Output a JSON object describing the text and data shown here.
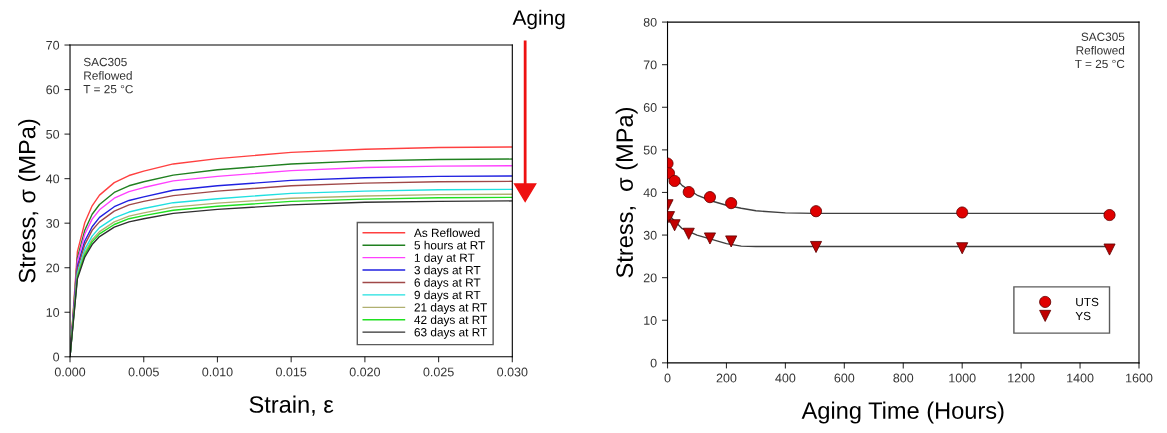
{
  "chart_data": [
    {
      "type": "line",
      "xlabel": "Strain, ε",
      "ylabel": "Stress, σ (MPa)",
      "xlim": [
        0,
        0.03
      ],
      "ylim": [
        0,
        70
      ],
      "xticks": [
        {
          "value": 0,
          "label": "0.000"
        },
        {
          "value": 0.005,
          "label": "0.005"
        },
        {
          "value": 0.01,
          "label": "0.010"
        },
        {
          "value": 0.015,
          "label": "0.015"
        },
        {
          "value": 0.02,
          "label": "0.020"
        },
        {
          "value": 0.025,
          "label": "0.025"
        },
        {
          "value": 0.03,
          "label": "0.030"
        }
      ],
      "yticks": [
        0,
        10,
        20,
        30,
        40,
        50,
        60,
        70
      ],
      "legend": "bottom right",
      "x": [
        0,
        0.0005,
        0.001,
        0.0015,
        0.002,
        0.003,
        0.004,
        0.005,
        0.007,
        0.01,
        0.015,
        0.02,
        0.025,
        0.03
      ],
      "annotations": [
        "SAC305\nReflowed\nT = 25 °C",
        "Aging"
      ],
      "series": [
        {
          "name": "As Reflowed",
          "color": "#ff4040",
          "values": [
            0,
            23.6,
            30.1,
            33.9,
            36.3,
            39.1,
            40.7,
            41.7,
            43.3,
            44.5,
            45.9,
            46.6,
            47.0,
            47.1
          ]
        },
        {
          "name": "5 hours at RT",
          "color": "#208020",
          "values": [
            0,
            22.2,
            28.4,
            32.0,
            34.2,
            36.9,
            38.4,
            39.3,
            40.8,
            42.0,
            43.3,
            44.0,
            44.3,
            44.4
          ]
        },
        {
          "name": "1 day at RT",
          "color": "#ff40ff",
          "values": [
            0,
            21.5,
            27.5,
            30.9,
            33.0,
            35.6,
            37.1,
            38.0,
            39.5,
            40.5,
            41.8,
            42.5,
            42.8,
            42.9
          ]
        },
        {
          "name": "3 days at RT",
          "color": "#2020e0",
          "values": [
            0,
            20.3,
            26.0,
            29.2,
            31.3,
            33.7,
            35.1,
            35.9,
            37.4,
            38.4,
            39.6,
            40.2,
            40.5,
            40.6
          ]
        },
        {
          "name": "6 days at RT",
          "color": "#a04848",
          "values": [
            0,
            19.7,
            25.2,
            28.4,
            30.3,
            32.7,
            34.1,
            34.9,
            36.2,
            37.2,
            38.4,
            39.0,
            39.3,
            39.4
          ]
        },
        {
          "name": "9 days at RT",
          "color": "#20e0e0",
          "values": [
            0,
            18.8,
            24.1,
            27.1,
            29.0,
            31.2,
            32.5,
            33.3,
            34.6,
            35.5,
            36.7,
            37.2,
            37.5,
            37.6
          ]
        },
        {
          "name": "21 days at RT",
          "color": "#b0b070",
          "values": [
            0,
            18.3,
            23.4,
            26.3,
            28.1,
            30.3,
            31.6,
            32.3,
            33.6,
            34.5,
            35.6,
            36.1,
            36.4,
            36.5
          ]
        },
        {
          "name": "42 days at RT",
          "color": "#20e020",
          "values": [
            0,
            17.9,
            22.9,
            25.8,
            27.6,
            29.7,
            31.0,
            31.7,
            32.9,
            33.8,
            34.9,
            35.4,
            35.7,
            35.8
          ]
        },
        {
          "name": "63 days at RT",
          "color": "#303030",
          "values": [
            0,
            17.5,
            22.4,
            25.2,
            27.0,
            29.1,
            30.3,
            31.0,
            32.2,
            33.1,
            34.1,
            34.7,
            34.9,
            35.0
          ]
        }
      ]
    },
    {
      "type": "scatter",
      "xlabel": "Aging Time (Hours)",
      "ylabel": "Stress,  σ (MPa)",
      "xlim": [
        0,
        1600
      ],
      "ylim": [
        0,
        80
      ],
      "xticks": [
        0,
        200,
        400,
        600,
        800,
        1000,
        1200,
        1400,
        1600
      ],
      "yticks": [
        0,
        10,
        20,
        30,
        40,
        50,
        60,
        70,
        80
      ],
      "legend": "bottom right",
      "annotations": [
        "SAC305\nReflowed\nT = 25 °C"
      ],
      "series": [
        {
          "type": "line",
          "color": "#404040",
          "marker": "none",
          "x": [
            0,
            50,
            100,
            150,
            200,
            250,
            300,
            400,
            500,
            1000,
            1500
          ],
          "values": [
            45.5,
            41.6,
            39.4,
            38.0,
            37.0,
            36.3,
            35.7,
            35.2,
            35.1,
            35.1,
            35.1
          ]
        },
        {
          "type": "line",
          "color": "#404040",
          "marker": "none",
          "x": [
            0,
            50,
            100,
            150,
            200,
            250,
            300,
            400,
            500,
            1000,
            1500
          ],
          "values": [
            35.0,
            31.5,
            30.0,
            29.0,
            28.0,
            27.4,
            27.3,
            27.3,
            27.3,
            27.3,
            27.3
          ]
        },
        {
          "name": "UTS",
          "color": "#e00000",
          "marker": "circle",
          "x": [
            0,
            5,
            24,
            72,
            144,
            216,
            504,
            1000,
            1500
          ],
          "values": [
            46.8,
            44.5,
            42.7,
            40.1,
            38.9,
            37.5,
            35.6,
            35.3,
            34.7
          ]
        },
        {
          "name": "YS",
          "color": "#c00000",
          "marker": "triangle",
          "x": [
            0,
            5,
            24,
            72,
            144,
            216,
            504,
            1000,
            1500
          ],
          "values": [
            37.0,
            34.2,
            32.3,
            30.3,
            29.2,
            28.5,
            27.2,
            26.9,
            26.6
          ]
        }
      ]
    }
  ]
}
